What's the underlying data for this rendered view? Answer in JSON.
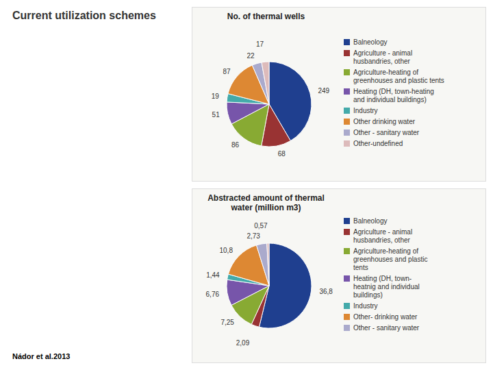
{
  "title": "Current utilization schemes",
  "annotations": [
    "Nádor et al.2013"
  ],
  "chart_data": [
    {
      "type": "pie",
      "title": "No. of thermal wells",
      "categories": [
        "Balneology",
        "Agriculture - animal\nhusbandries, other",
        "Agriculture-heating of\ngreenhouses and plastic tents",
        "Heating (DH, town-heating\nand individual buildings)",
        "Industry",
        "Other  drinking water",
        "Other - sanitary water",
        "Other-undefined"
      ],
      "values": [
        249,
        68,
        86,
        51,
        19,
        87,
        22,
        17
      ],
      "colors": [
        "#1f3f8f",
        "#993333",
        "#88aa33",
        "#7755aa",
        "#44aaaa",
        "#dd8833",
        "#aaaacc",
        "#ddbbbb"
      ],
      "data_labels": true,
      "legend": "right"
    },
    {
      "type": "pie",
      "title": "Abstracted amount of thermal\nwater (million m3)",
      "categories": [
        "Balneology",
        "Agriculture - animal\nhusbandries, other",
        "Agriculture-heating of\ngreenhouses and plastic\ntents",
        "Heating (DH, town-\nheatnig and individual\nbuildings)",
        "Industry",
        "Other- drinking water",
        "Other - sanitary water",
        null
      ],
      "values": [
        36.8,
        2.09,
        7.25,
        6.76,
        1.44,
        10.8,
        2.73,
        0.57
      ],
      "value_labels": [
        "36,8",
        "2,09",
        "7,25",
        "6,76",
        "1,44",
        "10,8",
        "2,73",
        "0,57"
      ],
      "colors": [
        "#1f3f8f",
        "#993333",
        "#88aa33",
        "#7755aa",
        "#44aaaa",
        "#dd8833",
        "#aaaacc",
        "#ddbbbb"
      ],
      "data_labels": true,
      "legend": "right"
    }
  ]
}
